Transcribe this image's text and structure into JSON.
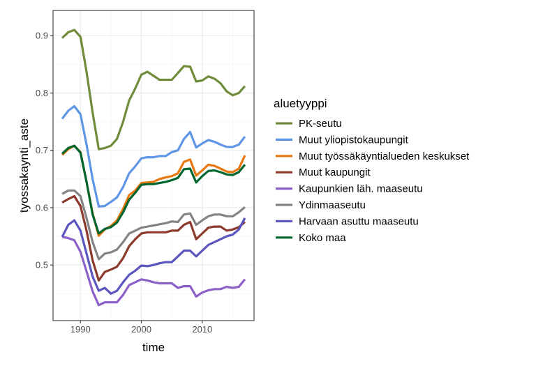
{
  "chart_data": {
    "type": "line",
    "xlabel": "time",
    "ylabel": "tyossakaynti_aste",
    "xlim": [
      1985.5,
      2018.5
    ],
    "ylim": [
      0.403,
      0.944
    ],
    "x_ticks": [
      1990,
      2000,
      2010
    ],
    "x_tick_labels": [
      "1990",
      "2000",
      "2010"
    ],
    "y_ticks": [
      0.5,
      0.6,
      0.7,
      0.8,
      0.9
    ],
    "y_tick_labels": [
      "0.5",
      "0.6",
      "0.7",
      "0.8",
      "0.9"
    ],
    "grid": true,
    "legend_title": "aluetyyppi",
    "legend_position": "right",
    "x": [
      1987,
      1988,
      1989,
      1990,
      1991,
      1992,
      1993,
      1994,
      1995,
      1996,
      1997,
      1998,
      1999,
      2000,
      2001,
      2002,
      2003,
      2004,
      2005,
      2006,
      2007,
      2008,
      2009,
      2010,
      2011,
      2012,
      2013,
      2014,
      2015,
      2016,
      2017
    ],
    "series": [
      {
        "name": "PK-seutu",
        "color": "#6f8c3b",
        "values": [
          0.896,
          0.906,
          0.91,
          0.898,
          0.837,
          0.766,
          0.702,
          0.704,
          0.708,
          0.72,
          0.75,
          0.787,
          0.808,
          0.832,
          0.837,
          0.83,
          0.823,
          0.823,
          0.823,
          0.835,
          0.847,
          0.846,
          0.82,
          0.822,
          0.829,
          0.825,
          0.817,
          0.803,
          0.796,
          0.8,
          0.812
        ]
      },
      {
        "name": "Muut yliopistokaupungit",
        "color": "#5f96e6",
        "values": [
          0.755,
          0.769,
          0.777,
          0.763,
          0.71,
          0.65,
          0.602,
          0.603,
          0.61,
          0.618,
          0.636,
          0.66,
          0.672,
          0.686,
          0.688,
          0.688,
          0.69,
          0.69,
          0.697,
          0.7,
          0.72,
          0.732,
          0.705,
          0.712,
          0.718,
          0.715,
          0.71,
          0.706,
          0.706,
          0.71,
          0.724
        ]
      },
      {
        "name": "Muut työssäkäyntialueden keskukset",
        "color": "#e87811",
        "values": [
          0.692,
          0.702,
          0.708,
          0.697,
          0.645,
          0.59,
          0.551,
          0.562,
          0.568,
          0.578,
          0.598,
          0.622,
          0.63,
          0.643,
          0.644,
          0.645,
          0.65,
          0.653,
          0.655,
          0.66,
          0.68,
          0.684,
          0.656,
          0.665,
          0.675,
          0.673,
          0.668,
          0.663,
          0.662,
          0.668,
          0.691
        ]
      },
      {
        "name": "Muut kaupungit",
        "color": "#8b3a2b",
        "values": [
          0.609,
          0.615,
          0.62,
          0.603,
          0.56,
          0.508,
          0.473,
          0.488,
          0.492,
          0.497,
          0.512,
          0.533,
          0.545,
          0.555,
          0.557,
          0.557,
          0.557,
          0.557,
          0.56,
          0.56,
          0.57,
          0.575,
          0.545,
          0.555,
          0.565,
          0.567,
          0.567,
          0.56,
          0.562,
          0.566,
          0.575
        ]
      },
      {
        "name": "Kaupunkien läh. maaseutu",
        "color": "#8c60c7",
        "values": [
          0.549,
          0.547,
          0.543,
          0.523,
          0.489,
          0.454,
          0.43,
          0.435,
          0.435,
          0.435,
          0.448,
          0.465,
          0.47,
          0.475,
          0.473,
          0.47,
          0.468,
          0.468,
          0.468,
          0.46,
          0.463,
          0.463,
          0.445,
          0.452,
          0.456,
          0.458,
          0.458,
          0.462,
          0.46,
          0.462,
          0.475
        ]
      },
      {
        "name": "Ydinmaaseutu",
        "color": "#848484",
        "values": [
          0.624,
          0.63,
          0.63,
          0.62,
          0.582,
          0.54,
          0.51,
          0.52,
          0.522,
          0.527,
          0.54,
          0.555,
          0.56,
          0.565,
          0.567,
          0.569,
          0.571,
          0.573,
          0.576,
          0.575,
          0.588,
          0.59,
          0.57,
          0.578,
          0.585,
          0.588,
          0.588,
          0.585,
          0.585,
          0.592,
          0.601
        ]
      },
      {
        "name": "Harvaan asuttu maaseutu",
        "color": "#5b55bf",
        "values": [
          0.549,
          0.57,
          0.578,
          0.56,
          0.52,
          0.48,
          0.455,
          0.46,
          0.45,
          0.455,
          0.47,
          0.483,
          0.49,
          0.499,
          0.498,
          0.5,
          0.503,
          0.505,
          0.505,
          0.515,
          0.525,
          0.525,
          0.515,
          0.525,
          0.535,
          0.54,
          0.545,
          0.55,
          0.553,
          0.562,
          0.582
        ]
      },
      {
        "name": "Koko maa",
        "color": "#006630",
        "values": [
          0.694,
          0.704,
          0.708,
          0.696,
          0.645,
          0.588,
          0.555,
          0.563,
          0.566,
          0.574,
          0.592,
          0.614,
          0.626,
          0.64,
          0.641,
          0.641,
          0.643,
          0.645,
          0.648,
          0.652,
          0.667,
          0.668,
          0.644,
          0.655,
          0.664,
          0.665,
          0.662,
          0.658,
          0.657,
          0.662,
          0.675
        ]
      }
    ]
  }
}
